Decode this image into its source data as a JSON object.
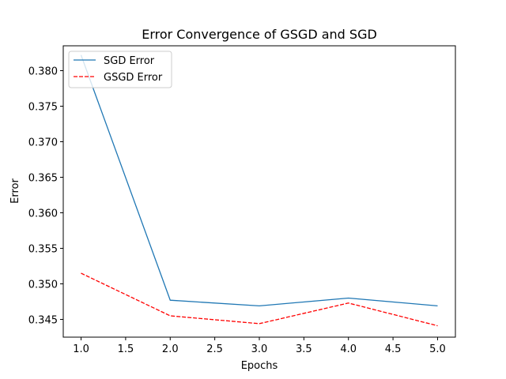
{
  "chart_data": {
    "type": "line",
    "title": "Error Convergence of GSGD and SGD",
    "xlabel": "Epochs",
    "ylabel": "Error",
    "x": [
      1.0,
      2.0,
      3.0,
      4.0,
      5.0
    ],
    "xlim": [
      0.8,
      5.2
    ],
    "ylim": [
      0.3425,
      0.3835
    ],
    "xticks": [
      1.0,
      1.5,
      2.0,
      2.5,
      3.0,
      3.5,
      4.0,
      4.5,
      5.0
    ],
    "yticks": [
      0.345,
      0.35,
      0.355,
      0.36,
      0.365,
      0.37,
      0.375,
      0.38
    ],
    "xtick_labels": [
      "1.0",
      "1.5",
      "2.0",
      "2.5",
      "3.0",
      "3.5",
      "4.0",
      "4.5",
      "5.0"
    ],
    "ytick_labels": [
      "0.345",
      "0.350",
      "0.355",
      "0.360",
      "0.365",
      "0.370",
      "0.375",
      "0.380"
    ],
    "grid": false,
    "legend_position": "upper-left",
    "series": [
      {
        "name": "SGD Error",
        "values": [
          0.3822,
          0.3477,
          0.3469,
          0.348,
          0.3469
        ],
        "color": "#1f77b4",
        "style": "solid"
      },
      {
        "name": "GSGD Error",
        "values": [
          0.3515,
          0.3455,
          0.3444,
          0.3473,
          0.3441
        ],
        "color": "#ff0000",
        "style": "dashed"
      }
    ]
  }
}
